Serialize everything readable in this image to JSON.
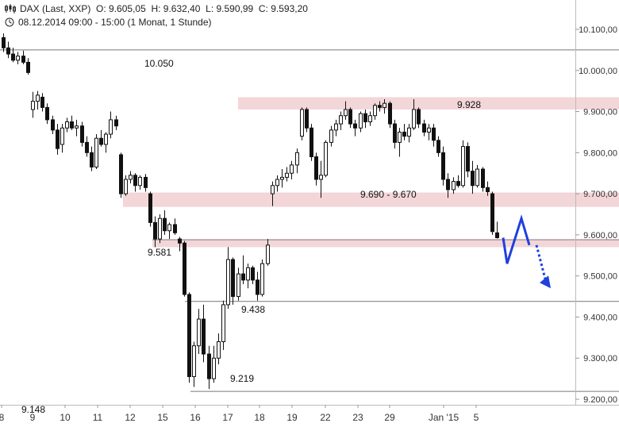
{
  "header": {
    "instrument": "DAX (Last, XXP)",
    "open": "O: 9.605,05",
    "high": "H: 9.632,40",
    "low": "L: 9.590,99",
    "close": "C: 9.593,20",
    "period": "08.12.2014 09:00 - 15:00 (1 Monat, 1 Stunde)",
    "icons": [
      "candlestick-icon",
      "clock-icon"
    ]
  },
  "chart_data": {
    "type": "candlestick",
    "title": "",
    "xlabel": "",
    "ylabel": "",
    "ylim": [
      9170,
      10140
    ],
    "y_ticks": [
      "10.100,00",
      "10.000,00",
      "9.900,00",
      "9.800,00",
      "9.700,00",
      "9.600,00",
      "9.500,00",
      "9.400,00",
      "9.300,00",
      "9.200,00"
    ],
    "y_tick_values": [
      10100,
      10000,
      9900,
      9800,
      9700,
      9600,
      9500,
      9400,
      9300,
      9200
    ],
    "x_ticks": [
      "8",
      "9",
      "10",
      "11",
      "12",
      "15",
      "16",
      "17",
      "18",
      "19",
      "22",
      "23",
      "29",
      "Jan '15",
      "5"
    ],
    "grid": false,
    "zones": [
      {
        "label": "9.928",
        "from": 9905,
        "to": 9935,
        "color": "#f3d6d8"
      },
      {
        "label": "9.690 - 9.670",
        "from": 9668,
        "to": 9703,
        "color": "#f3d6d8"
      },
      {
        "label": "9.581",
        "from": 9570,
        "to": 9590,
        "color": "#f3d6d8"
      }
    ],
    "levels": [
      {
        "label": "10.050",
        "value": 10050
      },
      {
        "label": "9.438",
        "value": 9438
      },
      {
        "label": "9.219",
        "value": 9219
      },
      {
        "label": "9.148",
        "value": 9148
      }
    ],
    "projection": {
      "color": "#1f3fe0",
      "path": [
        9593,
        9530,
        9640,
        9575
      ],
      "dotted_target": 9470
    },
    "candles": [
      {
        "date": "8",
        "o": 10080,
        "h": 10090,
        "l": 10045,
        "c": 10055
      },
      {
        "date": "8",
        "o": 10055,
        "h": 10070,
        "l": 10030,
        "c": 10040
      },
      {
        "date": "8",
        "o": 10040,
        "h": 10055,
        "l": 10020,
        "c": 10025
      },
      {
        "date": "8",
        "o": 10025,
        "h": 10045,
        "l": 10015,
        "c": 10035
      },
      {
        "date": "9",
        "o": 10035,
        "h": 10048,
        "l": 10015,
        "c": 10020
      },
      {
        "date": "9",
        "o": 10020,
        "h": 10030,
        "l": 9990,
        "c": 9995
      },
      {
        "date": "9",
        "o": 9905,
        "h": 9948,
        "l": 9885,
        "c": 9925
      },
      {
        "date": "9",
        "o": 9925,
        "h": 9950,
        "l": 9905,
        "c": 9940
      },
      {
        "date": "9",
        "o": 9935,
        "h": 9945,
        "l": 9900,
        "c": 9910
      },
      {
        "date": "10",
        "o": 9910,
        "h": 9920,
        "l": 9870,
        "c": 9880
      },
      {
        "date": "10",
        "o": 9880,
        "h": 9890,
        "l": 9845,
        "c": 9855
      },
      {
        "date": "10",
        "o": 9855,
        "h": 9870,
        "l": 9795,
        "c": 9810
      },
      {
        "date": "10",
        "o": 9820,
        "h": 9870,
        "l": 9800,
        "c": 9860
      },
      {
        "date": "10",
        "o": 9860,
        "h": 9885,
        "l": 9850,
        "c": 9875
      },
      {
        "date": "10",
        "o": 9875,
        "h": 9890,
        "l": 9855,
        "c": 9860
      },
      {
        "date": "11",
        "o": 9860,
        "h": 9880,
        "l": 9840,
        "c": 9865
      },
      {
        "date": "11",
        "o": 9865,
        "h": 9875,
        "l": 9815,
        "c": 9825
      },
      {
        "date": "11",
        "o": 9825,
        "h": 9840,
        "l": 9790,
        "c": 9800
      },
      {
        "date": "11",
        "o": 9800,
        "h": 9815,
        "l": 9755,
        "c": 9765
      },
      {
        "date": "11",
        "o": 9765,
        "h": 9845,
        "l": 9760,
        "c": 9835
      },
      {
        "date": "11",
        "o": 9835,
        "h": 9855,
        "l": 9815,
        "c": 9820
      },
      {
        "date": "12",
        "o": 9820,
        "h": 9850,
        "l": 9800,
        "c": 9845
      },
      {
        "date": "12",
        "o": 9845,
        "h": 9900,
        "l": 9835,
        "c": 9880
      },
      {
        "date": "12",
        "o": 9880,
        "h": 9890,
        "l": 9855,
        "c": 9865
      },
      {
        "date": "12",
        "o": 9795,
        "h": 9800,
        "l": 9690,
        "c": 9700
      },
      {
        "date": "12",
        "o": 9700,
        "h": 9745,
        "l": 9695,
        "c": 9735
      },
      {
        "date": "12",
        "o": 9735,
        "h": 9755,
        "l": 9725,
        "c": 9745
      },
      {
        "date": "15",
        "o": 9745,
        "h": 9750,
        "l": 9705,
        "c": 9720
      },
      {
        "date": "15",
        "o": 9720,
        "h": 9745,
        "l": 9710,
        "c": 9740
      },
      {
        "date": "15",
        "o": 9740,
        "h": 9748,
        "l": 9705,
        "c": 9715
      },
      {
        "date": "15",
        "o": 9700,
        "h": 9705,
        "l": 9620,
        "c": 9630
      },
      {
        "date": "15",
        "o": 9630,
        "h": 9645,
        "l": 9570,
        "c": 9590
      },
      {
        "date": "15",
        "o": 9590,
        "h": 9650,
        "l": 9580,
        "c": 9640
      },
      {
        "date": "15",
        "o": 9640,
        "h": 9660,
        "l": 9600,
        "c": 9610
      },
      {
        "date": "15",
        "o": 9610,
        "h": 9630,
        "l": 9590,
        "c": 9625
      },
      {
        "date": "15",
        "o": 9625,
        "h": 9640,
        "l": 9600,
        "c": 9605
      },
      {
        "date": "16",
        "o": 9590,
        "h": 9595,
        "l": 9560,
        "c": 9580
      },
      {
        "date": "16",
        "o": 9580,
        "h": 9585,
        "l": 9450,
        "c": 9455
      },
      {
        "date": "16",
        "o": 9455,
        "h": 9460,
        "l": 9240,
        "c": 9255
      },
      {
        "date": "16",
        "o": 9255,
        "h": 9340,
        "l": 9230,
        "c": 9330
      },
      {
        "date": "16",
        "o": 9330,
        "h": 9420,
        "l": 9310,
        "c": 9395
      },
      {
        "date": "16",
        "o": 9395,
        "h": 9430,
        "l": 9290,
        "c": 9310
      },
      {
        "date": "16",
        "o": 9310,
        "h": 9330,
        "l": 9225,
        "c": 9250
      },
      {
        "date": "17",
        "o": 9250,
        "h": 9330,
        "l": 9240,
        "c": 9300
      },
      {
        "date": "17",
        "o": 9300,
        "h": 9360,
        "l": 9285,
        "c": 9340
      },
      {
        "date": "17",
        "o": 9340,
        "h": 9440,
        "l": 9320,
        "c": 9430
      },
      {
        "date": "17",
        "o": 9430,
        "h": 9570,
        "l": 9420,
        "c": 9540
      },
      {
        "date": "17",
        "o": 9540,
        "h": 9545,
        "l": 9430,
        "c": 9450
      },
      {
        "date": "17",
        "o": 9450,
        "h": 9520,
        "l": 9440,
        "c": 9505
      },
      {
        "date": "17",
        "o": 9505,
        "h": 9550,
        "l": 9480,
        "c": 9490
      },
      {
        "date": "18",
        "o": 9490,
        "h": 9530,
        "l": 9470,
        "c": 9520
      },
      {
        "date": "18",
        "o": 9520,
        "h": 9525,
        "l": 9480,
        "c": 9490
      },
      {
        "date": "18",
        "o": 9490,
        "h": 9510,
        "l": 9440,
        "c": 9455
      },
      {
        "date": "18",
        "o": 9455,
        "h": 9540,
        "l": 9450,
        "c": 9530
      },
      {
        "date": "18",
        "o": 9530,
        "h": 9590,
        "l": 9525,
        "c": 9575
      },
      {
        "date": "18",
        "o": 9700,
        "h": 9730,
        "l": 9670,
        "c": 9720
      },
      {
        "date": "18",
        "o": 9720,
        "h": 9745,
        "l": 9705,
        "c": 9735
      },
      {
        "date": "19",
        "o": 9735,
        "h": 9760,
        "l": 9715,
        "c": 9740
      },
      {
        "date": "19",
        "o": 9740,
        "h": 9765,
        "l": 9730,
        "c": 9750
      },
      {
        "date": "19",
        "o": 9750,
        "h": 9780,
        "l": 9735,
        "c": 9770
      },
      {
        "date": "19",
        "o": 9770,
        "h": 9810,
        "l": 9750,
        "c": 9800
      },
      {
        "date": "19",
        "o": 9840,
        "h": 9910,
        "l": 9830,
        "c": 9905
      },
      {
        "date": "19",
        "o": 9905,
        "h": 9910,
        "l": 9850,
        "c": 9860
      },
      {
        "date": "19",
        "o": 9860,
        "h": 9870,
        "l": 9780,
        "c": 9790
      },
      {
        "date": "22",
        "o": 9790,
        "h": 9800,
        "l": 9720,
        "c": 9735
      },
      {
        "date": "22",
        "o": 9735,
        "h": 9780,
        "l": 9690,
        "c": 9745
      },
      {
        "date": "22",
        "o": 9745,
        "h": 9830,
        "l": 9740,
        "c": 9825
      },
      {
        "date": "22",
        "o": 9825,
        "h": 9865,
        "l": 9815,
        "c": 9855
      },
      {
        "date": "22",
        "o": 9855,
        "h": 9880,
        "l": 9840,
        "c": 9870
      },
      {
        "date": "22",
        "o": 9870,
        "h": 9900,
        "l": 9855,
        "c": 9890
      },
      {
        "date": "22",
        "o": 9890,
        "h": 9925,
        "l": 9880,
        "c": 9905
      },
      {
        "date": "23",
        "o": 9905,
        "h": 9910,
        "l": 9860,
        "c": 9870
      },
      {
        "date": "23",
        "o": 9870,
        "h": 9880,
        "l": 9840,
        "c": 9860
      },
      {
        "date": "23",
        "o": 9860,
        "h": 9900,
        "l": 9850,
        "c": 9895
      },
      {
        "date": "23",
        "o": 9895,
        "h": 9905,
        "l": 9860,
        "c": 9875
      },
      {
        "date": "23",
        "o": 9875,
        "h": 9900,
        "l": 9865,
        "c": 9890
      },
      {
        "date": "23",
        "o": 9890,
        "h": 9920,
        "l": 9880,
        "c": 9915
      },
      {
        "date": "29",
        "o": 9915,
        "h": 9925,
        "l": 9900,
        "c": 9910
      },
      {
        "date": "29",
        "o": 9910,
        "h": 9930,
        "l": 9895,
        "c": 9920
      },
      {
        "date": "29",
        "o": 9920,
        "h": 9925,
        "l": 9860,
        "c": 9870
      },
      {
        "date": "29",
        "o": 9870,
        "h": 9880,
        "l": 9810,
        "c": 9825
      },
      {
        "date": "29",
        "o": 9825,
        "h": 9860,
        "l": 9790,
        "c": 9850
      },
      {
        "date": "29",
        "o": 9850,
        "h": 9870,
        "l": 9830,
        "c": 9840
      },
      {
        "date": "29",
        "o": 9840,
        "h": 9870,
        "l": 9825,
        "c": 9860
      },
      {
        "date": "Jan '15",
        "o": 9860,
        "h": 9930,
        "l": 9855,
        "c": 9905
      },
      {
        "date": "Jan '15",
        "o": 9905,
        "h": 9910,
        "l": 9860,
        "c": 9870
      },
      {
        "date": "Jan '15",
        "o": 9870,
        "h": 9880,
        "l": 9840,
        "c": 9850
      },
      {
        "date": "Jan '15",
        "o": 9850,
        "h": 9870,
        "l": 9830,
        "c": 9860
      },
      {
        "date": "Jan '15",
        "o": 9860,
        "h": 9870,
        "l": 9815,
        "c": 9830
      },
      {
        "date": "Jan '15",
        "o": 9830,
        "h": 9840,
        "l": 9790,
        "c": 9800
      },
      {
        "date": "Jan '15",
        "o": 9800,
        "h": 9815,
        "l": 9720,
        "c": 9735
      },
      {
        "date": "Jan '15",
        "o": 9735,
        "h": 9750,
        "l": 9690,
        "c": 9710
      },
      {
        "date": "Jan '15",
        "o": 9710,
        "h": 9740,
        "l": 9700,
        "c": 9730
      },
      {
        "date": "Jan '15",
        "o": 9730,
        "h": 9745,
        "l": 9715,
        "c": 9720
      },
      {
        "date": "5",
        "o": 9720,
        "h": 9830,
        "l": 9715,
        "c": 9815
      },
      {
        "date": "5",
        "o": 9815,
        "h": 9825,
        "l": 9740,
        "c": 9755
      },
      {
        "date": "5",
        "o": 9755,
        "h": 9780,
        "l": 9700,
        "c": 9720
      },
      {
        "date": "5",
        "o": 9720,
        "h": 9770,
        "l": 9715,
        "c": 9760
      },
      {
        "date": "5",
        "o": 9760,
        "h": 9765,
        "l": 9705,
        "c": 9715
      },
      {
        "date": "5",
        "o": 9715,
        "h": 9730,
        "l": 9695,
        "c": 9705
      },
      {
        "date": "5",
        "o": 9700,
        "h": 9705,
        "l": 9600,
        "c": 9608
      },
      {
        "date": "5",
        "o": 9605,
        "h": 9632,
        "l": 9591,
        "c": 9593
      }
    ]
  }
}
